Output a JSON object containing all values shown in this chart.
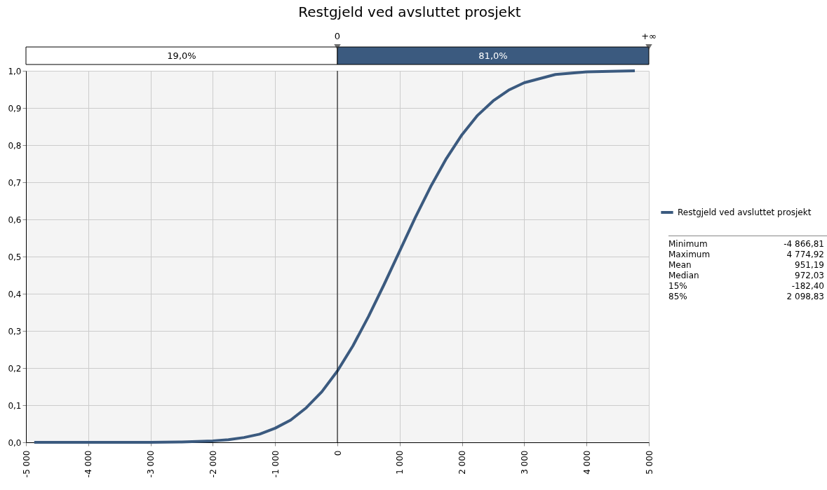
{
  "chart_data": {
    "type": "line",
    "title": "Restgjeld ved avsluttet prosjekt",
    "x": [
      -4867,
      -4000,
      -3000,
      -2500,
      -2000,
      -1750,
      -1500,
      -1250,
      -1000,
      -750,
      -500,
      -250,
      0,
      250,
      500,
      750,
      1000,
      1250,
      1500,
      1750,
      2000,
      2250,
      2500,
      2750,
      3000,
      3500,
      4000,
      4500,
      4775
    ],
    "series": [
      {
        "name": "Restgjeld ved avsluttet prosjekt",
        "color": "#3b5a7f",
        "values": [
          0,
          0,
          0,
          0.001,
          0.004,
          0.007,
          0.013,
          0.022,
          0.038,
          0.06,
          0.093,
          0.136,
          0.192,
          0.26,
          0.339,
          0.425,
          0.515,
          0.605,
          0.689,
          0.764,
          0.828,
          0.88,
          0.919,
          0.948,
          0.968,
          0.99,
          0.997,
          0.999,
          1
        ]
      }
    ],
    "xlim": [
      -5000,
      5000
    ],
    "xticks": [
      {
        "value": -5000,
        "label": "-5 000"
      },
      {
        "value": -4000,
        "label": "-4 000"
      },
      {
        "value": -3000,
        "label": "-3 000"
      },
      {
        "value": -2000,
        "label": "-2 000"
      },
      {
        "value": -1000,
        "label": "-1 000"
      },
      0,
      {
        "value": 1000,
        "label": "1 000"
      },
      {
        "value": 2000,
        "label": "2 000"
      },
      {
        "value": 3000,
        "label": "3 000"
      },
      {
        "value": 4000,
        "label": "4 000"
      },
      {
        "value": 5000,
        "label": "5 000"
      }
    ],
    "ylim": [
      0,
      1
    ],
    "yticks": [
      {
        "value": 0,
        "label": "0,0"
      },
      {
        "value": 0.1,
        "label": "0,1"
      },
      {
        "value": 0.2,
        "label": "0,2"
      },
      {
        "value": 0.3,
        "label": "0,3"
      },
      {
        "value": 0.4,
        "label": "0,4"
      },
      {
        "value": 0.5,
        "label": "0,5"
      },
      {
        "value": 0.6,
        "label": "0,6"
      },
      {
        "value": 0.7,
        "label": "0,7"
      },
      {
        "value": 0.8,
        "label": "0,8"
      },
      {
        "value": 0.9,
        "label": "0,9"
      },
      {
        "value": 1,
        "label": "1,0"
      }
    ],
    "grid": true,
    "legend": "right",
    "line_style": "solid",
    "marker": "none",
    "ref_lines": [
      {
        "axis": "x",
        "value": 0,
        "label": "0",
        "color": "#000000"
      }
    ],
    "annotations": [
      "+∞",
      "19,0%",
      "81,0%",
      "Minimum",
      "-4 866,81",
      "Maximum",
      "4 774,92",
      "Mean",
      "951,19",
      "Median",
      "972,03",
      "15%",
      "-182,40",
      "85%",
      "2 098,83"
    ]
  }
}
